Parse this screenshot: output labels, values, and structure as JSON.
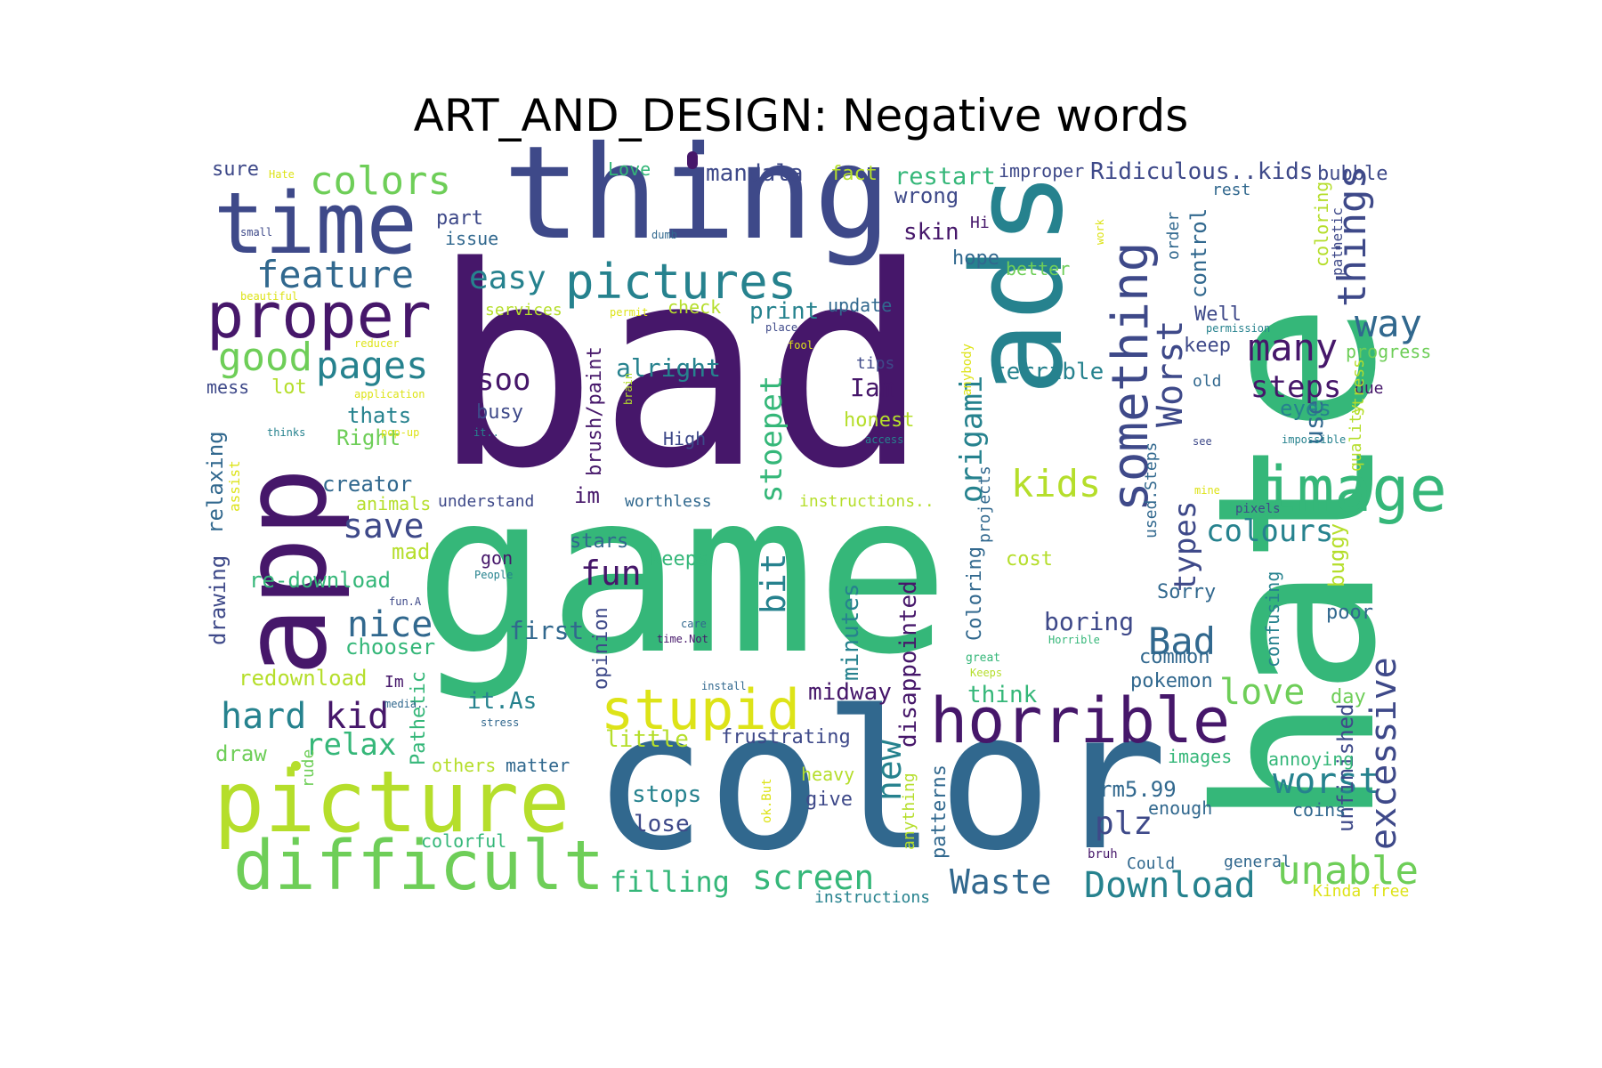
{
  "figure": {
    "title": "ART_AND_DESIGN: Negative words"
  },
  "palette": {
    "dark_purple": "#46176a",
    "indigo": "#3e4989",
    "blue": "#31688e",
    "teal": "#26828e",
    "green": "#35b779",
    "light_green": "#6ece58",
    "lime": "#b5de2b",
    "yellow": "#dde318"
  },
  "words": [
    "bad",
    "game",
    "hate",
    "color",
    "thing",
    "app",
    "ads",
    "time",
    "picture",
    "difficult",
    "proper",
    "pictures",
    "image",
    "horrible",
    "stupid",
    "something",
    "colors",
    "feature",
    "good",
    "pages",
    "easy",
    "things",
    "many",
    "way",
    "Worst",
    "kids",
    "Bad",
    "love",
    "worst",
    "Download",
    "unable",
    "Waste",
    "screen",
    "filling",
    "excessive",
    "hard",
    "kid",
    "nice",
    "save",
    "fun",
    "steps",
    "types",
    "colours",
    "origami",
    "stoepet",
    "bit",
    "new",
    "plz",
    "soo",
    "Iam",
    "alright",
    "mandala",
    "restart",
    "Ridiculous..kids",
    "sure",
    "Love",
    "fact",
    "improper",
    "bubble",
    "wrong",
    "skin",
    "part",
    "issue",
    "print",
    "update",
    "check",
    "services",
    "hope",
    "better",
    "Well",
    "order",
    "control",
    "rest",
    "coloring",
    "pathetic",
    "progress",
    "keep",
    "terrible",
    "lot",
    "mess",
    "thats",
    "Right",
    "busy",
    "High",
    "honest",
    "creator",
    "animals",
    "understand",
    "worthless",
    "instructions..",
    "im",
    "relaxing",
    "drawing",
    "assist",
    "use",
    "eyes",
    "due",
    "old",
    "quality",
    "buggy",
    "stars",
    "gon",
    "keeps",
    "re-download",
    "mad",
    "minutes",
    "disappointed",
    "Coloring",
    "projects",
    "cost",
    "Sorry",
    "first",
    "opinion",
    "chooser",
    "boring",
    "common",
    "poor",
    "confusing",
    "unfinished",
    "redownload",
    "Im",
    "it.As",
    "midway",
    "think",
    "pokemon",
    "day",
    "relax",
    "rude",
    "Pathetic",
    "little",
    "frustrating",
    "draw",
    "others",
    "matter",
    "heavy",
    "give",
    "stops",
    "lose",
    "colorful",
    "patterns",
    "anything",
    "images",
    "rm5.99",
    "enough",
    "annoying",
    "coins",
    "Could",
    "general",
    "instructions",
    "Kinda free",
    "bruh",
    "ok.But",
    "brush/paint",
    "used.Steps",
    "tips",
    "Hate",
    "small",
    "dumb",
    "beautiful",
    "permit",
    "place",
    "fool",
    "reducer",
    "application",
    "brain",
    "thinks",
    "it..",
    "pop-up",
    "access",
    "anybody",
    "Hi",
    "permission",
    "impossible",
    "see",
    "mine",
    "pixels",
    "People",
    "care",
    "time.Not",
    "fun.A",
    "great",
    "Keeps",
    "Horrible",
    "install",
    "media..",
    "stress",
    "work",
    "V"
  ]
}
